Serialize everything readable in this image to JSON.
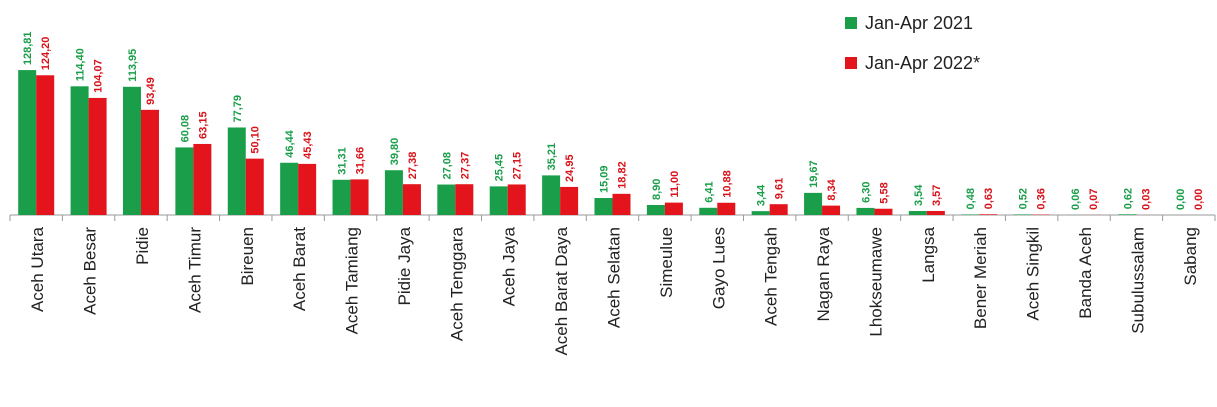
{
  "chart_data": {
    "type": "bar",
    "categories": [
      "Aceh Utara",
      "Aceh Besar",
      "Pidie",
      "Aceh Timur",
      "Bireuen",
      "Aceh Barat",
      "Aceh Tamiang",
      "Pidie Jaya",
      "Aceh Tenggara",
      "Aceh Jaya",
      "Aceh Barat Daya",
      "Aceh Selatan",
      "Simeulue",
      "Gayo Lues",
      "Aceh Tengah",
      "Nagan Raya",
      "Lhokseumawe",
      "Langsa",
      "Bener Meriah",
      "Aceh Singkil",
      "Banda Aceh",
      "Subulussalam",
      "Sabang"
    ],
    "series": [
      {
        "name": "Jan-Apr 2021",
        "color": "#1a9e4a",
        "values": [
          128.81,
          114.4,
          113.95,
          60.08,
          77.79,
          46.44,
          31.31,
          39.8,
          27.08,
          25.45,
          35.21,
          15.09,
          8.9,
          6.41,
          3.44,
          19.67,
          6.3,
          3.54,
          0.48,
          0.52,
          0.06,
          0.62,
          0.0
        ],
        "labels": [
          "128,81",
          "114,40",
          "113,95",
          "60,08",
          "77,79",
          "46,44",
          "31,31",
          "39,80",
          "27,08",
          "25,45",
          "35,21",
          "15,09",
          "8,90",
          "6,41",
          "3,44",
          "19,67",
          "6,30",
          "3,54",
          "0,48",
          "0,52",
          "0,06",
          "0,62",
          "0,00"
        ]
      },
      {
        "name": "Jan-Apr 2022*",
        "color": "#e3141b",
        "values": [
          124.2,
          104.07,
          93.49,
          63.15,
          50.1,
          45.43,
          31.66,
          27.38,
          27.37,
          27.15,
          24.95,
          18.82,
          11.0,
          10.88,
          9.61,
          8.34,
          5.58,
          3.57,
          0.63,
          0.36,
          0.07,
          0.03,
          0.0
        ],
        "labels": [
          "124,20",
          "104,07",
          "93,49",
          "63,15",
          "50,10",
          "45,43",
          "31,66",
          "27,38",
          "27,37",
          "27,15",
          "24,95",
          "18,82",
          "11,00",
          "10,88",
          "9,61",
          "8,34",
          "5,58",
          "3,57",
          "0,63",
          "0,36",
          "0,07",
          "0,03",
          "0,00"
        ]
      }
    ],
    "ylim": [
      0,
      140
    ],
    "legend_position": "top-right",
    "grid": false
  }
}
